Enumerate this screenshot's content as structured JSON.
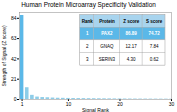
{
  "chart_data": {
    "type": "bar",
    "title": "Human Protein Microarray Specificity Validation",
    "xlabel": "Signal Rank",
    "ylabel": "Strength of Signal (Z score)",
    "x": [
      1,
      2,
      3,
      4,
      5,
      6,
      7,
      8,
      9,
      10,
      11,
      12,
      13,
      14,
      15,
      16,
      17,
      18,
      19,
      20,
      21,
      22,
      23,
      24,
      25,
      26,
      27,
      28,
      29,
      30
    ],
    "values": [
      86.89,
      12.17,
      4.3,
      2.5,
      2.0,
      1.8,
      1.5,
      1.3,
      1.2,
      1.1,
      1.0,
      0.95,
      0.9,
      0.85,
      0.8,
      0.75,
      0.7,
      0.65,
      0.6,
      0.55,
      0.5,
      0.48,
      0.46,
      0.44,
      0.42,
      0.4,
      0.38,
      0.36,
      0.34,
      0.32
    ],
    "colors": [
      "#5bb8e8",
      "#8ecde8",
      "#8ecde8",
      "#8ecde8",
      "#8ecde8",
      "#8ecde8",
      "#8ecde8",
      "#8ecde8",
      "#8ecde8",
      "#8ecde8",
      "#8ecde8",
      "#8ecde8",
      "#8ecde8",
      "#8ecde8",
      "#8ecde8",
      "#8ecde8",
      "#8ecde8",
      "#8ecde8",
      "#8ecde8",
      "#8ecde8",
      "#8ecde8",
      "#8ecde8",
      "#8ecde8",
      "#8ecde8",
      "#8ecde8",
      "#8ecde8",
      "#8ecde8",
      "#8ecde8",
      "#8ecde8",
      "#8ecde8"
    ],
    "xlim": [
      0.5,
      30
    ],
    "xticks": [
      1,
      10,
      20,
      30
    ],
    "ylim": [
      0,
      90
    ],
    "yticks": [
      0,
      21,
      42,
      63,
      84
    ],
    "grid": false,
    "table": {
      "rows": [
        [
          "Rank",
          "Protein",
          "Z score",
          "S score"
        ],
        [
          "1",
          "PAX2",
          "86.89",
          "74.72"
        ],
        [
          "2",
          "GNAQ",
          "12.17",
          "7.84"
        ],
        [
          "3",
          "SERIN3",
          "4.30",
          "0.62"
        ]
      ],
      "header_color": "#a8d4ee",
      "highlight_color": "#5bb8e8",
      "border_color": "#aaaaaa"
    }
  }
}
